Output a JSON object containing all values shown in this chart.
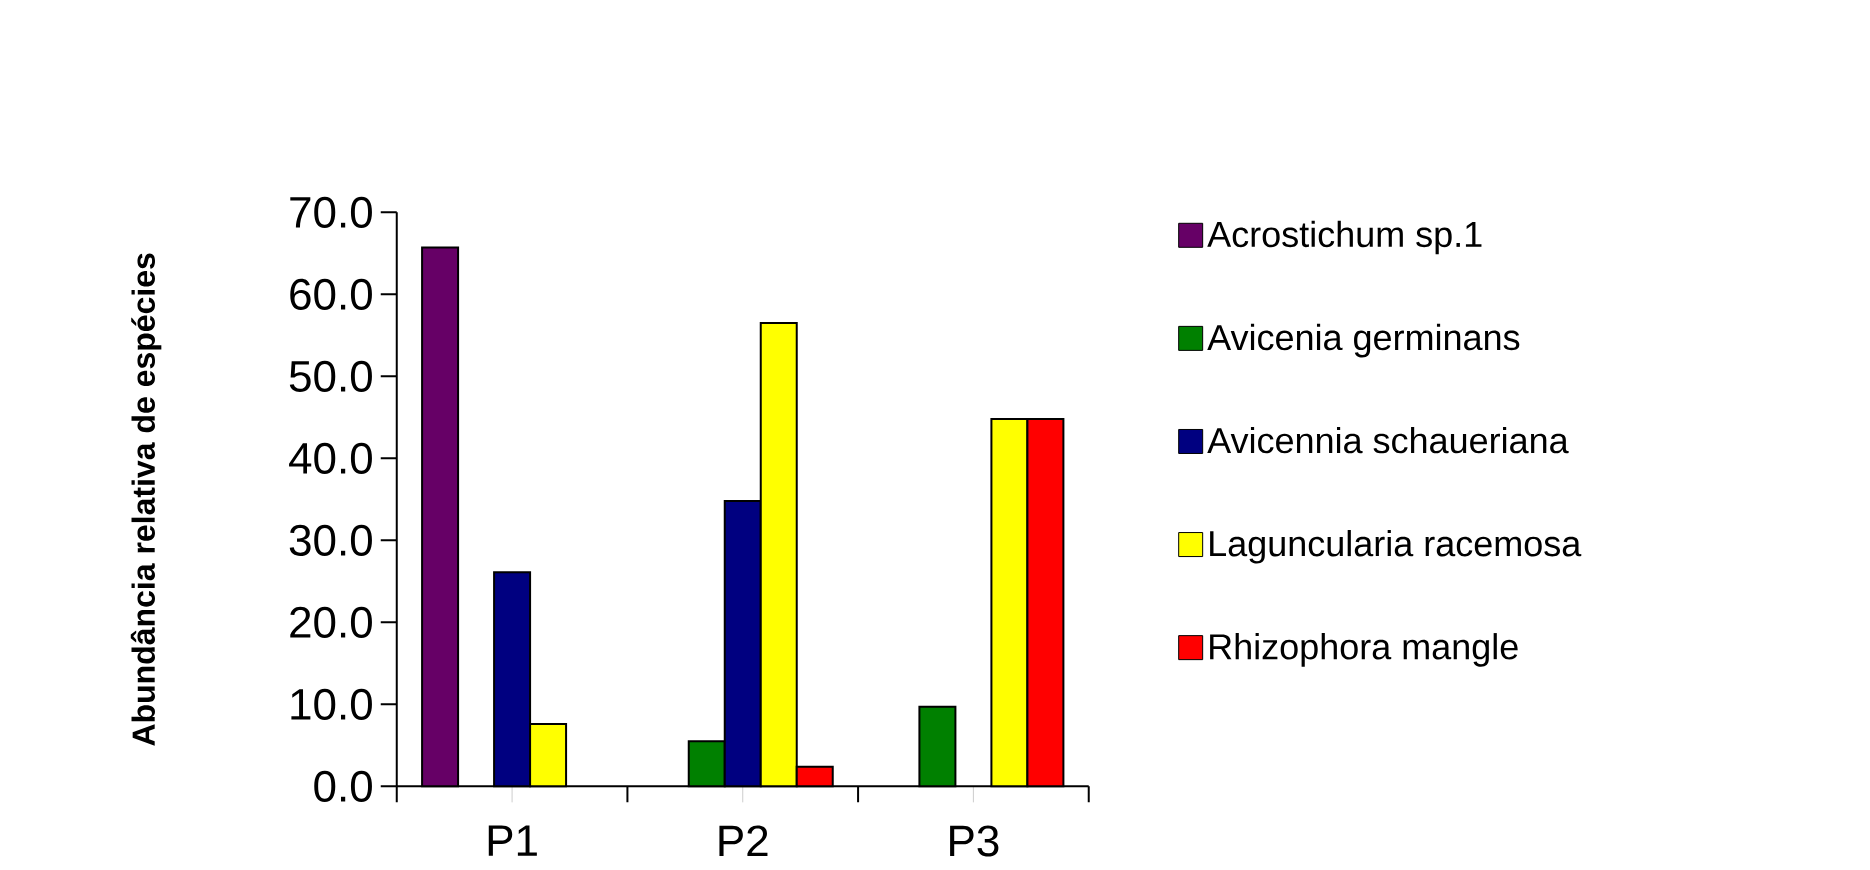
{
  "chart_data": {
    "type": "bar",
    "ylabel": "Abundância relativa de espécies",
    "categories": [
      "P1",
      "P2",
      "P3"
    ],
    "series": [
      {
        "name": "Acrostichum sp.1",
        "color": "#660066",
        "values": [
          65.7,
          null,
          null
        ]
      },
      {
        "name": "Avicenia germinans",
        "color": "#008000",
        "values": [
          null,
          5.5,
          9.7
        ]
      },
      {
        "name": "Avicennia schaueriana",
        "color": "#000080",
        "values": [
          26.1,
          34.8,
          null
        ]
      },
      {
        "name": "Laguncularia racemosa",
        "color": "#ffff00",
        "values": [
          7.6,
          56.5,
          44.8
        ]
      },
      {
        "name": "Rhizophora mangle",
        "color": "#ff0000",
        "values": [
          null,
          2.4,
          44.8
        ]
      }
    ],
    "ylim": [
      0,
      70
    ],
    "yticks": [
      {
        "value": 0,
        "label": "0.0"
      },
      {
        "value": 10,
        "label": "10.0"
      },
      {
        "value": 20,
        "label": "20.0"
      },
      {
        "value": 30,
        "label": "30.0"
      },
      {
        "value": 40,
        "label": "40.0"
      },
      {
        "value": 50,
        "label": "50.0"
      },
      {
        "value": 60,
        "label": "60.0"
      },
      {
        "value": 70,
        "label": "70.0"
      }
    ],
    "grid": false,
    "legend": "right"
  }
}
